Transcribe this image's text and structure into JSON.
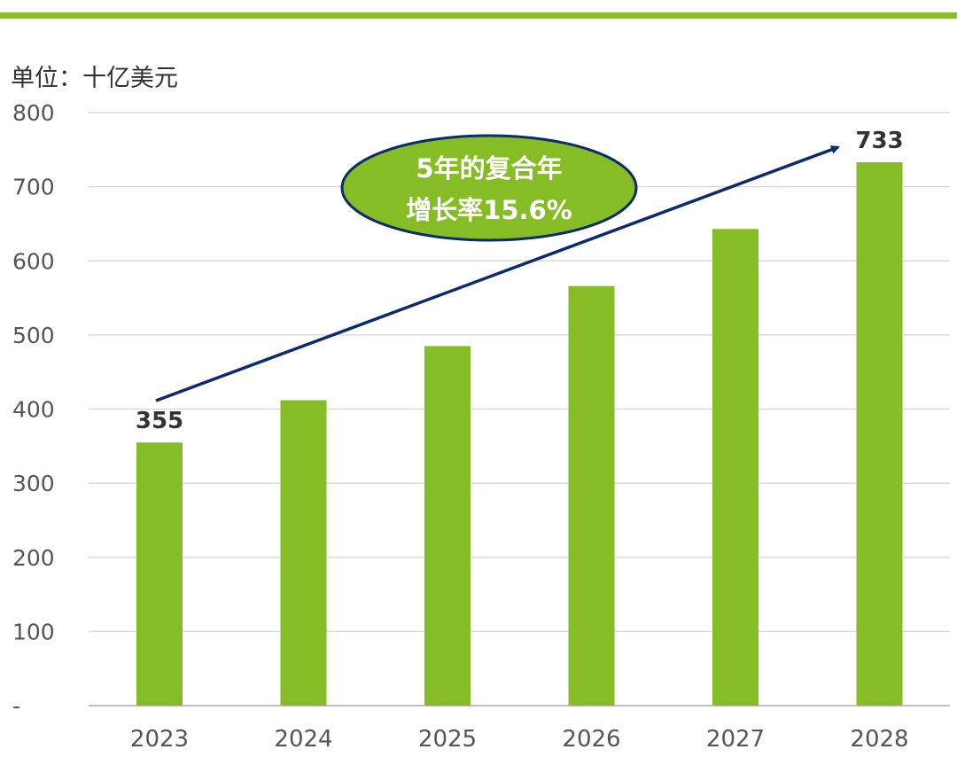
{
  "unit_label": "单位：十亿美元",
  "annotation": {
    "lines": [
      "5年的复合年",
      "增长率15.6%"
    ]
  },
  "colors": {
    "bar": "#86bc25",
    "arrow": "#0d2a6b",
    "grid": "#d9d9d9",
    "ellipse_fill": "#86bc25",
    "ellipse_border": "#0d2a6b"
  },
  "chart_data": {
    "type": "bar",
    "categories": [
      "2023",
      "2024",
      "2025",
      "2026",
      "2027",
      "2028"
    ],
    "values": [
      355,
      412,
      485,
      566,
      643,
      733
    ],
    "data_labels": [
      {
        "index": 0,
        "text": "355"
      },
      {
        "index": 5,
        "text": "733"
      }
    ],
    "title": "",
    "xlabel": "",
    "ylabel": "",
    "ylim": [
      0,
      800
    ],
    "y_ticks": [
      {
        "value": 0,
        "label": "-"
      },
      {
        "value": 100,
        "label": "100"
      },
      {
        "value": 200,
        "label": "200"
      },
      {
        "value": 300,
        "label": "300"
      },
      {
        "value": 400,
        "label": "400"
      },
      {
        "value": 500,
        "label": "500"
      },
      {
        "value": 600,
        "label": "600"
      },
      {
        "value": 700,
        "label": "700"
      },
      {
        "value": 800,
        "label": "800"
      }
    ],
    "grid": true,
    "legend": "none"
  }
}
